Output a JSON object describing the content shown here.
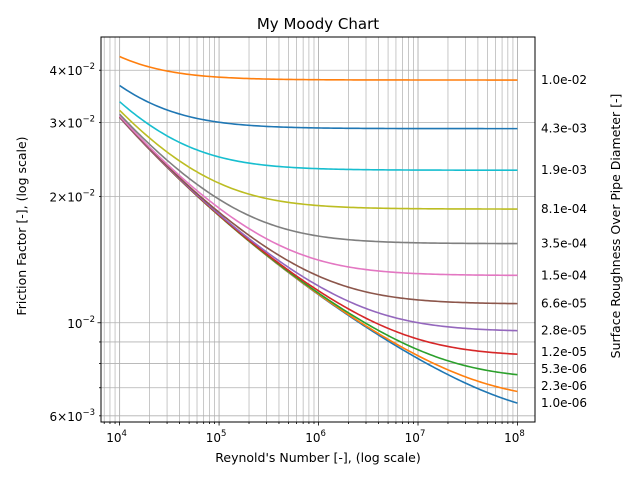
{
  "chart_data": {
    "type": "line",
    "title": "My Moody Chart",
    "xlabel": "Reynold's Number [-], (log scale)",
    "ylabel": "Friction Factor [-], (log scale)",
    "right_ylabel": "Surface Roughness Over Pipe Diameter [-]",
    "x_scale": "log",
    "y_scale": "log",
    "xlim": [
      6500,
      150000000
    ],
    "ylim": [
      0.0058,
      0.048
    ],
    "grid": "both-major-minor",
    "x_ticks": [
      {
        "value": 10000,
        "base": "10",
        "exp": "4"
      },
      {
        "value": 100000,
        "base": "10",
        "exp": "5"
      },
      {
        "value": 1000000,
        "base": "10",
        "exp": "6"
      },
      {
        "value": 10000000,
        "base": "10",
        "exp": "7"
      },
      {
        "value": 100000000,
        "base": "10",
        "exp": "8"
      }
    ],
    "y_ticks": [
      {
        "value": 0.006,
        "mant": "6",
        "base": "10",
        "exp": "−3"
      },
      {
        "value": 0.01,
        "mant": "",
        "base": "10",
        "exp": "−2"
      },
      {
        "value": 0.02,
        "mant": "2",
        "base": "10",
        "exp": "−2"
      },
      {
        "value": 0.03,
        "mant": "3",
        "base": "10",
        "exp": "−2"
      },
      {
        "value": 0.04,
        "mant": "4",
        "base": "10",
        "exp": "−2"
      }
    ],
    "series": [
      {
        "name": "1.0e-06",
        "roughness": 1e-06,
        "color": "#1f77b4"
      },
      {
        "name": "2.3e-06",
        "roughness": 2.27e-06,
        "color": "#ff7f0e"
      },
      {
        "name": "5.3e-06",
        "roughness": 5.27e-06,
        "color": "#2ca02c"
      },
      {
        "name": "1.2e-05",
        "roughness": 1.21e-05,
        "color": "#d62728"
      },
      {
        "name": "2.8e-05",
        "roughness": 2.78e-05,
        "color": "#9467bd"
      },
      {
        "name": "6.6e-05",
        "roughness": 6.58e-05,
        "color": "#8c564b"
      },
      {
        "name": "1.5e-04",
        "roughness": 0.00015,
        "color": "#e377c2"
      },
      {
        "name": "3.5e-04",
        "roughness": 0.00035,
        "color": "#7f7f7f"
      },
      {
        "name": "8.1e-04",
        "roughness": 0.00081,
        "color": "#bcbd22"
      },
      {
        "name": "1.9e-03",
        "roughness": 0.0019,
        "color": "#17becf"
      },
      {
        "name": "4.3e-03",
        "roughness": 0.0043,
        "color": "#1f77b4"
      },
      {
        "name": "1.0e-02",
        "roughness": 0.01,
        "color": "#ff7f0e"
      }
    ],
    "x_range_data": [
      10000,
      100000000
    ]
  }
}
